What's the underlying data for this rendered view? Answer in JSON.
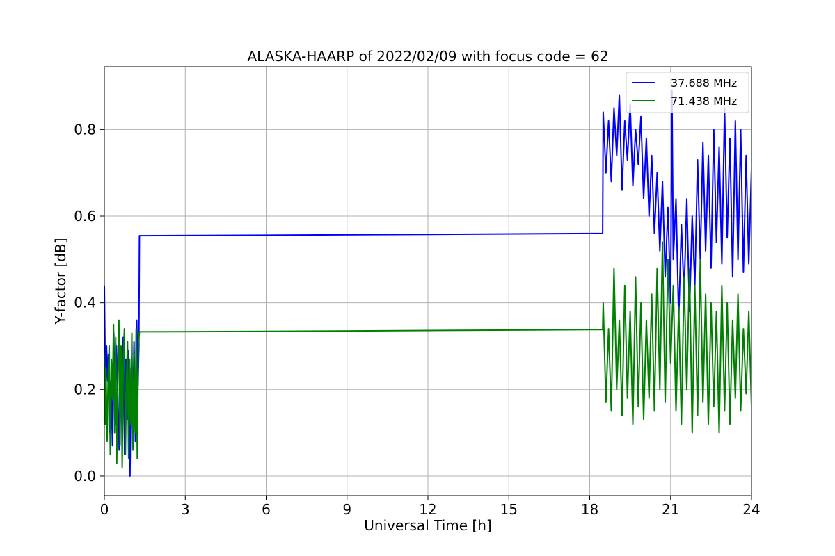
{
  "chart_data": {
    "type": "line",
    "title": "ALASKA-HAARP of 2022/02/09 with focus code = 62",
    "xlabel": "Universal Time [h]",
    "ylabel": "Y-factor [dB]",
    "xlim": [
      0,
      24
    ],
    "ylim": [
      -0.045,
      0.945
    ],
    "xticks": [
      0,
      3,
      6,
      9,
      12,
      15,
      18,
      21,
      24
    ],
    "xtick_labels": [
      "0",
      "3",
      "6",
      "9",
      "12",
      "15",
      "18",
      "21",
      "24"
    ],
    "yticks": [
      0.0,
      0.2,
      0.4,
      0.6,
      0.8
    ],
    "ytick_labels": [
      "0.0",
      "0.2",
      "0.4",
      "0.6",
      "0.8"
    ],
    "grid": true,
    "legend_position": "upper right",
    "series": [
      {
        "name": "37.688 MHz",
        "color": "#0000ff",
        "x": [
          0.0,
          0.02,
          0.05,
          0.08,
          0.12,
          0.15,
          0.2,
          0.25,
          0.3,
          0.35,
          0.4,
          0.45,
          0.5,
          0.55,
          0.6,
          0.65,
          0.7,
          0.75,
          0.8,
          0.85,
          0.9,
          0.95,
          1.0,
          1.05,
          1.1,
          1.15,
          1.2,
          1.25,
          1.28,
          1.3,
          6.0,
          12.0,
          18.0,
          18.48,
          18.5,
          18.6,
          18.7,
          18.8,
          18.9,
          19.0,
          19.1,
          19.2,
          19.3,
          19.4,
          19.5,
          19.6,
          19.7,
          19.8,
          19.9,
          20.0,
          20.1,
          20.2,
          20.3,
          20.4,
          20.5,
          20.6,
          20.7,
          20.8,
          20.9,
          21.0,
          21.05,
          21.1,
          21.2,
          21.3,
          21.4,
          21.5,
          21.6,
          21.7,
          21.8,
          21.9,
          22.0,
          22.1,
          22.2,
          22.3,
          22.4,
          22.5,
          22.6,
          22.7,
          22.8,
          22.9,
          23.0,
          23.1,
          23.2,
          23.3,
          23.4,
          23.5,
          23.6,
          23.7,
          23.8,
          23.9,
          24.0
        ],
        "y": [
          0.44,
          0.32,
          0.15,
          0.3,
          0.22,
          0.28,
          0.1,
          0.22,
          0.07,
          0.33,
          0.12,
          0.3,
          0.18,
          0.06,
          0.29,
          0.2,
          0.32,
          0.05,
          0.27,
          0.13,
          0.29,
          0.0,
          0.25,
          0.1,
          0.31,
          0.08,
          0.36,
          0.21,
          0.3,
          0.555,
          0.556,
          0.558,
          0.56,
          0.56,
          0.84,
          0.7,
          0.82,
          0.68,
          0.85,
          0.74,
          0.88,
          0.66,
          0.82,
          0.73,
          0.86,
          0.67,
          0.8,
          0.72,
          0.83,
          0.64,
          0.78,
          0.6,
          0.74,
          0.56,
          0.7,
          0.52,
          0.68,
          0.46,
          0.62,
          0.4,
          0.89,
          0.5,
          0.64,
          0.36,
          0.58,
          0.42,
          0.64,
          0.38,
          0.6,
          0.44,
          0.73,
          0.5,
          0.77,
          0.52,
          0.74,
          0.48,
          0.8,
          0.54,
          0.76,
          0.49,
          0.85,
          0.55,
          0.78,
          0.46,
          0.82,
          0.5,
          0.8,
          0.47,
          0.74,
          0.49,
          0.71
        ]
      },
      {
        "name": "71.438 MHz",
        "color": "#008000",
        "x": [
          0.0,
          0.03,
          0.06,
          0.1,
          0.14,
          0.18,
          0.22,
          0.26,
          0.3,
          0.34,
          0.38,
          0.42,
          0.46,
          0.5,
          0.54,
          0.58,
          0.62,
          0.66,
          0.7,
          0.74,
          0.78,
          0.82,
          0.86,
          0.9,
          0.94,
          0.98,
          1.02,
          1.06,
          1.1,
          1.14,
          1.18,
          1.22,
          1.26,
          1.3,
          6.0,
          12.0,
          18.0,
          18.48,
          18.5,
          18.6,
          18.7,
          18.8,
          18.9,
          19.0,
          19.1,
          19.2,
          19.3,
          19.4,
          19.5,
          19.6,
          19.7,
          19.8,
          19.9,
          20.0,
          20.1,
          20.2,
          20.3,
          20.4,
          20.5,
          20.6,
          20.7,
          20.8,
          20.9,
          21.0,
          21.1,
          21.2,
          21.3,
          21.4,
          21.5,
          21.6,
          21.7,
          21.8,
          21.9,
          22.0,
          22.1,
          22.2,
          22.3,
          22.4,
          22.5,
          22.6,
          22.7,
          22.8,
          22.9,
          23.0,
          23.1,
          23.2,
          23.3,
          23.4,
          23.5,
          23.6,
          23.7,
          23.8,
          23.9,
          24.0
        ],
        "y": [
          0.28,
          0.12,
          0.25,
          0.08,
          0.22,
          0.3,
          0.05,
          0.27,
          0.18,
          0.35,
          0.1,
          0.32,
          0.03,
          0.24,
          0.36,
          0.07,
          0.3,
          0.02,
          0.26,
          0.34,
          0.05,
          0.22,
          0.31,
          0.04,
          0.27,
          0.12,
          0.33,
          0.06,
          0.28,
          0.1,
          0.34,
          0.04,
          0.3,
          0.333,
          0.334,
          0.336,
          0.338,
          0.338,
          0.4,
          0.17,
          0.34,
          0.15,
          0.48,
          0.2,
          0.36,
          0.14,
          0.44,
          0.18,
          0.38,
          0.12,
          0.46,
          0.16,
          0.4,
          0.13,
          0.36,
          0.18,
          0.42,
          0.15,
          0.48,
          0.2,
          0.54,
          0.17,
          0.5,
          0.26,
          0.44,
          0.15,
          0.39,
          0.12,
          0.46,
          0.2,
          0.48,
          0.1,
          0.44,
          0.14,
          0.5,
          0.17,
          0.42,
          0.12,
          0.4,
          0.16,
          0.38,
          0.1,
          0.44,
          0.15,
          0.4,
          0.12,
          0.36,
          0.18,
          0.42,
          0.15,
          0.34,
          0.19,
          0.38,
          0.16
        ]
      }
    ]
  }
}
